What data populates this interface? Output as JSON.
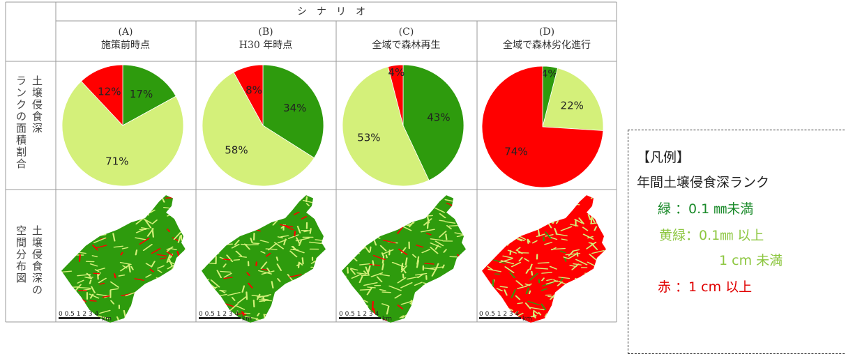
{
  "header": {
    "scenario_label": "シナリオ",
    "row1_label": [
      "ランクの面積割合",
      "土壌侵食深"
    ],
    "row2_label": [
      "空間分布図",
      "土壌侵食深の"
    ]
  },
  "columns": [
    {
      "code": "(A)",
      "name": "施策前時点"
    },
    {
      "code": "(B)",
      "name": "H30 年時点"
    },
    {
      "code": "(C)",
      "name": "全域で森林再生"
    },
    {
      "code": "(D)",
      "name": "全域で森林劣化進行"
    }
  ],
  "chart_data": [
    {
      "type": "pie",
      "title": "",
      "labels": [
        "緑",
        "黄緑",
        "赤"
      ],
      "values": [
        17,
        71,
        12
      ],
      "value_labels": [
        "17%",
        "71%",
        "12%"
      ]
    },
    {
      "type": "pie",
      "title": "",
      "labels": [
        "緑",
        "黄緑",
        "赤"
      ],
      "values": [
        34,
        58,
        8
      ],
      "value_labels": [
        "34%",
        "58%",
        "8%"
      ]
    },
    {
      "type": "pie",
      "title": "",
      "labels": [
        "緑",
        "黄緑",
        "赤"
      ],
      "values": [
        43,
        53,
        4
      ],
      "value_labels": [
        "43%",
        "53%",
        "4%"
      ]
    },
    {
      "type": "pie",
      "title": "",
      "labels": [
        "緑",
        "黄緑",
        "赤"
      ],
      "values": [
        4,
        22,
        74
      ],
      "value_labels": [
        "4%",
        "22%",
        "74%"
      ]
    }
  ],
  "colors": {
    "green": "#2e9b0d",
    "lightgreen": "#d4f07a",
    "red": "#ff0000"
  },
  "maps": {
    "scale_text": "0 0.5 1  2  3  4",
    "scale_unit": "km",
    "red_share": [
      0.12,
      0.08,
      0.04,
      0.74
    ]
  },
  "legend": {
    "title": "【凡例】",
    "subtitle": "年間土壌侵食深ランク",
    "green": "緑 ：0.1 ㎜未満",
    "lightgreen_1": "黄緑：0.1㎜ 以上",
    "lightgreen_2": "1 cm 未満",
    "red": "赤 ：1 cm 以上",
    "colors": {
      "green": "#1a8a2a",
      "lightgreen": "#8cc63f",
      "red": "#e00000"
    }
  }
}
